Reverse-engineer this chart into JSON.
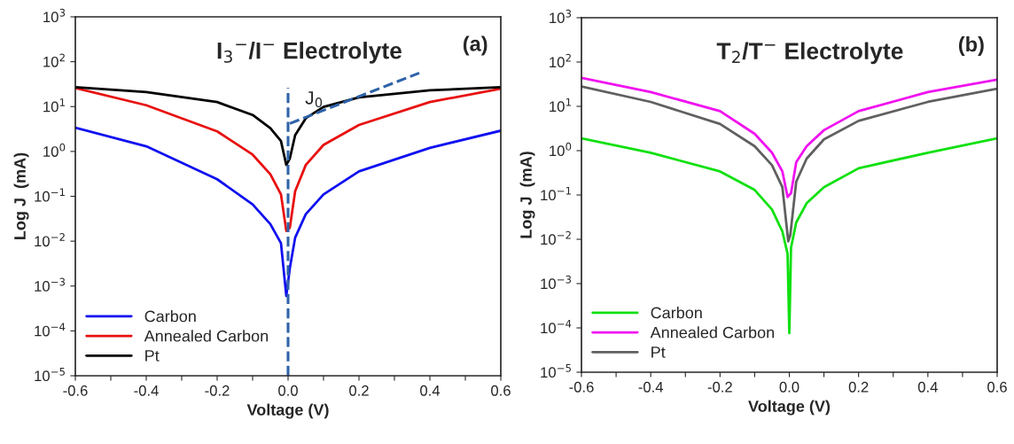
{
  "chart_data": [
    {
      "type": "line",
      "title": "I$_{3}$$^{−}$/I$^{−}$ Electrolyte",
      "xlabel": "Voltage (V)",
      "ylabel": "Log J  (mA)",
      "log": "y",
      "grid": false,
      "legend": "bottom left",
      "line_style": "solid",
      "marker": "none",
      "xlim": [
        -0.6,
        0.6
      ],
      "ylim": [
        1e-05,
        1000
      ],
      "xticks": [
        -0.6,
        {
          "value": -0.5,
          "label": null
        },
        -0.4,
        {
          "value": -0.3,
          "label": null
        },
        -0.2,
        {
          "value": -0.1,
          "label": null
        },
        {
          "value": 0,
          "label": "0.0"
        },
        {
          "value": 0.1,
          "label": null
        },
        0.2,
        {
          "value": 0.3,
          "label": null
        },
        0.4,
        {
          "value": 0.5,
          "label": null
        },
        0.6
      ],
      "yticks": [
        {
          "value": 1e-05,
          "label": "10$^{−5}$"
        },
        {
          "value": 0.0001,
          "label": "10$^{−4}$"
        },
        {
          "value": 0.001,
          "label": "10$^{−3}$"
        },
        {
          "value": 0.01,
          "label": "10$^{−2}$"
        },
        {
          "value": 0.1,
          "label": "10$^{−1}$"
        },
        {
          "value": 1,
          "label": "10$^{0}$"
        },
        {
          "value": 10,
          "label": "10$^{1}$"
        },
        {
          "value": 100,
          "label": "10$^{2}$"
        },
        {
          "value": 1000,
          "label": "10$^{3}$"
        }
      ],
      "x": [
        -0.6,
        -0.4,
        -0.2,
        -0.1,
        -0.05,
        -0.02,
        -0.005,
        0.005,
        0.02,
        0.05,
        0.1,
        0.2,
        0.4,
        0.6
      ],
      "series": [
        {
          "name": "Carbon",
          "color": "#1010f0",
          "values": [
            3.4,
            1.3,
            0.24,
            0.066,
            0.024,
            0.009,
            0.0006,
            0.0025,
            0.012,
            0.04,
            0.11,
            0.36,
            1.2,
            2.9
          ]
        },
        {
          "name": "Annealed Carbon",
          "color": "#e81010",
          "values": [
            26,
            10.7,
            2.8,
            0.85,
            0.31,
            0.11,
            0.017,
            0.02,
            0.13,
            0.5,
            1.4,
            3.9,
            12.6,
            25
          ]
        },
        {
          "name": "Pt",
          "color": "#000000",
          "values": [
            27,
            21,
            12.6,
            6.5,
            3.3,
            1.7,
            0.5,
            0.7,
            2.3,
            5.5,
            9.8,
            16,
            23,
            27
          ]
        },
        {
          "type": "line",
          "color": "#2e62a8",
          "line_style": "dashed",
          "x": [
            0.0,
            0.0
          ],
          "values": [
            1e-05,
            26
          ]
        },
        {
          "type": "line",
          "color": "#2e62a8",
          "line_style": "dashed",
          "x": [
            0.005,
            0.37
          ],
          "values": [
            4.2,
            56
          ]
        }
      ],
      "annotations": [
        {
          "text": "J$_{0}$"
        },
        "(a)"
      ]
    },
    {
      "type": "line",
      "title": "T$_{2}$/T$^{−}$ Electrolyte",
      "xlabel": "Voltage (V)",
      "ylabel": "Log J  (mA)",
      "log": "y",
      "grid": false,
      "legend": "bottom left",
      "line_style": "solid",
      "marker": "none",
      "xlim": [
        -0.6,
        0.6
      ],
      "ylim": [
        1e-05,
        1000
      ],
      "xticks": [
        -0.6,
        {
          "value": -0.5,
          "label": null
        },
        -0.4,
        {
          "value": -0.3,
          "label": null
        },
        -0.2,
        {
          "value": -0.1,
          "label": null
        },
        {
          "value": 0,
          "label": "0.0"
        },
        {
          "value": 0.1,
          "label": null
        },
        0.2,
        {
          "value": 0.3,
          "label": null
        },
        0.4,
        {
          "value": 0.5,
          "label": null
        },
        0.6
      ],
      "yticks": [
        {
          "value": 1e-05,
          "label": "10$^{−5}$"
        },
        {
          "value": 0.0001,
          "label": "10$^{−4}$"
        },
        {
          "value": 0.001,
          "label": "10$^{−3}$"
        },
        {
          "value": 0.01,
          "label": "10$^{−2}$"
        },
        {
          "value": 0.1,
          "label": "10$^{−1}$"
        },
        {
          "value": 1,
          "label": "10$^{0}$"
        },
        {
          "value": 10,
          "label": "10$^{1}$"
        },
        {
          "value": 100,
          "label": "10$^{2}$"
        },
        {
          "value": 1000,
          "label": "10$^{3}$"
        }
      ],
      "series": [
        {
          "name": "Carbon",
          "color": "#10e010",
          "x": [
            -0.6,
            -0.4,
            -0.2,
            -0.1,
            -0.05,
            -0.02,
            -0.005,
            0.0,
            0.005,
            0.02,
            0.05,
            0.1,
            0.2,
            0.4,
            0.6
          ],
          "values": [
            1.9,
            0.9,
            0.34,
            0.13,
            0.047,
            0.015,
            0.0047,
            7.6e-05,
            0.0065,
            0.024,
            0.065,
            0.15,
            0.4,
            0.9,
            1.9
          ]
        },
        {
          "name": "Annealed Carbon",
          "color": "#f010f0",
          "x": [
            -0.6,
            -0.4,
            -0.2,
            -0.1,
            -0.05,
            -0.02,
            -0.005,
            0.005,
            0.02,
            0.05,
            0.1,
            0.2,
            0.4,
            0.6
          ],
          "values": [
            44,
            21,
            7.8,
            2.4,
            0.9,
            0.34,
            0.09,
            0.11,
            0.55,
            1.26,
            2.9,
            7.8,
            21,
            40
          ]
        },
        {
          "name": "Pt",
          "color": "#606060",
          "x": [
            -0.6,
            -0.4,
            -0.2,
            -0.1,
            -0.05,
            -0.02,
            -0.003,
            0.003,
            0.02,
            0.05,
            0.1,
            0.2,
            0.4,
            0.6
          ],
          "values": [
            28,
            12.6,
            4,
            1.26,
            0.47,
            0.15,
            0.009,
            0.0126,
            0.2,
            0.66,
            1.8,
            4.7,
            12.6,
            25
          ]
        }
      ],
      "annotations": [
        "(b)"
      ]
    }
  ]
}
